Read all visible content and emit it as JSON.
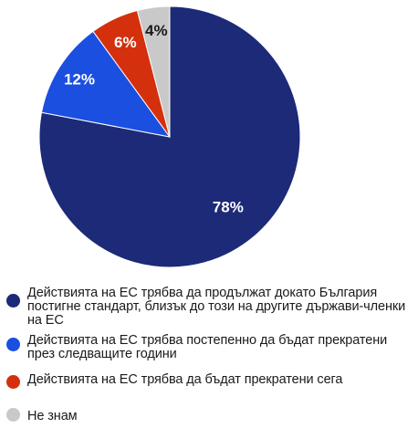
{
  "chart_data": {
    "type": "pie",
    "start_angle_deg": 0,
    "direction": "clockwise",
    "slices": [
      {
        "label": "Действията на ЕС трябва да продължат докато България постигне стандарт, близък до този на другите държави-членки на ЕС",
        "value": 78,
        "value_label": "78%",
        "color": "#1c2a78",
        "label_color": "#ffffff"
      },
      {
        "label": "Действията на ЕС трябва постепенно да бъдат прекратени през следващите години",
        "value": 12,
        "value_label": "12%",
        "color": "#1a4fe0",
        "label_color": "#ffffff"
      },
      {
        "label": "Действията на ЕС трябва да бъдат прекратени сега",
        "value": 6,
        "value_label": "6%",
        "color": "#d4300d",
        "label_color": "#ffffff"
      },
      {
        "label": "Не знам",
        "value": 4,
        "value_label": "4%",
        "color": "#c9c9c9",
        "label_color": "#1a1a1a"
      }
    ],
    "legend_position": "bottom"
  }
}
